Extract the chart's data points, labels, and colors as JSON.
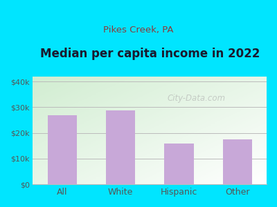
{
  "title": "Median per capita income in 2022",
  "subtitle": "Pikes Creek, PA",
  "categories": [
    "All",
    "White",
    "Hispanic",
    "Other"
  ],
  "values": [
    27000,
    28700,
    16000,
    17500
  ],
  "bar_color": "#c8a8d8",
  "title_color": "#1a1a2e",
  "subtitle_color": "#8b3a3a",
  "background_color": "#00e5ff",
  "ylim": [
    0,
    42000
  ],
  "yticks": [
    0,
    10000,
    20000,
    30000,
    40000
  ],
  "ytick_labels": [
    "$0",
    "$10k",
    "$20k",
    "$30k",
    "$40k"
  ],
  "grid_color": "#bbbbbb",
  "tick_color": "#555555",
  "watermark": "City-Data.com"
}
